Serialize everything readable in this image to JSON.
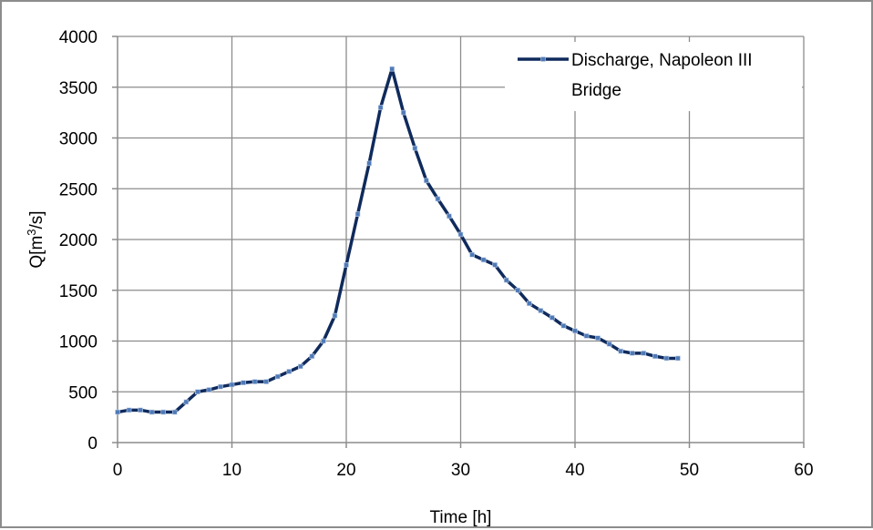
{
  "chart_data": {
    "type": "line",
    "title": "",
    "xlabel": "Time [h]",
    "ylabel": "Q[m³/s]",
    "xlim": [
      0,
      60
    ],
    "ylim": [
      0,
      4000
    ],
    "xticks": [
      0,
      10,
      20,
      30,
      40,
      50,
      60
    ],
    "yticks": [
      0,
      500,
      1000,
      1500,
      2000,
      2500,
      3000,
      3500,
      4000
    ],
    "grid": true,
    "legend_position": "top-right",
    "series": [
      {
        "name": "Discharge, Napoleon III Bridge",
        "color": "#0f2a5c",
        "marker_color": "#4f7ab8",
        "x": [
          0,
          1,
          2,
          3,
          4,
          5,
          6,
          7,
          8,
          9,
          10,
          11,
          12,
          13,
          14,
          15,
          16,
          17,
          18,
          19,
          20,
          21,
          22,
          23,
          24,
          25,
          26,
          27,
          28,
          29,
          30,
          31,
          32,
          33,
          34,
          35,
          36,
          37,
          38,
          39,
          40,
          41,
          42,
          43,
          44,
          45,
          46,
          47,
          48,
          49
        ],
        "y": [
          300,
          320,
          320,
          300,
          300,
          300,
          400,
          500,
          520,
          550,
          570,
          590,
          600,
          600,
          650,
          700,
          750,
          850,
          1000,
          1250,
          1750,
          2250,
          2750,
          3300,
          3680,
          3250,
          2900,
          2580,
          2400,
          2230,
          2050,
          1850,
          1800,
          1750,
          1600,
          1500,
          1370,
          1300,
          1230,
          1150,
          1100,
          1050,
          1030,
          970,
          900,
          880,
          880,
          850,
          830,
          830
        ]
      }
    ]
  }
}
